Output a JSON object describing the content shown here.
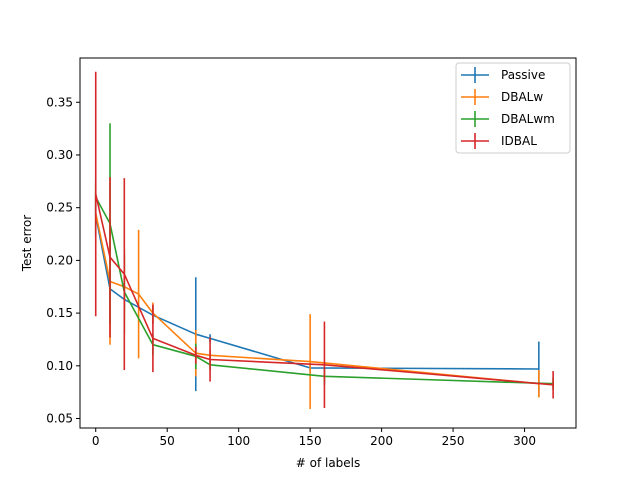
{
  "chart_data": {
    "type": "line",
    "title": "",
    "xlabel": "# of labels",
    "ylabel": "Test error",
    "xlim": [
      -11,
      336
    ],
    "ylim": [
      0.041,
      0.392
    ],
    "xticks": [
      0,
      50,
      100,
      150,
      200,
      250,
      300
    ],
    "yticks": [
      0.05,
      0.1,
      0.15,
      0.2,
      0.25,
      0.3,
      0.35
    ],
    "ytick_labels": [
      "0.05",
      "0.10",
      "0.15",
      "0.20",
      "0.25",
      "0.30",
      "0.35"
    ],
    "grid": false,
    "legend_position": "top-right",
    "series": [
      {
        "name": "Passive",
        "color": "#1f77b4",
        "points": [
          {
            "x": 0,
            "y": 0.243,
            "err": 0.02
          },
          {
            "x": 10,
            "y": 0.173,
            "err": 0.012
          },
          {
            "x": 20,
            "y": 0.163,
            "err": 0.01
          },
          {
            "x": 40,
            "y": 0.148,
            "err": 0.008
          },
          {
            "x": 70,
            "y": 0.13,
            "err": 0.054
          },
          {
            "x": 80,
            "y": 0.126,
            "err": 0.004
          },
          {
            "x": 150,
            "y": 0.098,
            "err": 0.004
          },
          {
            "x": 310,
            "y": 0.097,
            "err": 0.026
          }
        ]
      },
      {
        "name": "DBALw",
        "color": "#ff7f0e",
        "points": [
          {
            "x": 0,
            "y": 0.245,
            "err": 0.02
          },
          {
            "x": 10,
            "y": 0.18,
            "err": 0.06
          },
          {
            "x": 20,
            "y": 0.175,
            "err": 0.03
          },
          {
            "x": 30,
            "y": 0.168,
            "err": 0.061
          },
          {
            "x": 40,
            "y": 0.15,
            "err": 0.01
          },
          {
            "x": 70,
            "y": 0.112,
            "err": 0.022
          },
          {
            "x": 80,
            "y": 0.11,
            "err": 0.005
          },
          {
            "x": 150,
            "y": 0.104,
            "err": 0.045
          },
          {
            "x": 310,
            "y": 0.083,
            "err": 0.013
          },
          {
            "x": 320,
            "y": 0.083,
            "err": 0.004
          }
        ]
      },
      {
        "name": "DBALwm",
        "color": "#2ca02c",
        "points": [
          {
            "x": 0,
            "y": 0.26,
            "err": 0.016
          },
          {
            "x": 10,
            "y": 0.235,
            "err": 0.095
          },
          {
            "x": 20,
            "y": 0.17,
            "err": 0.04
          },
          {
            "x": 40,
            "y": 0.12,
            "err": 0.01
          },
          {
            "x": 70,
            "y": 0.109,
            "err": 0.012
          },
          {
            "x": 80,
            "y": 0.101,
            "err": 0.005
          },
          {
            "x": 160,
            "y": 0.09,
            "err": 0.008
          },
          {
            "x": 320,
            "y": 0.083,
            "err": 0.006
          }
        ]
      },
      {
        "name": "IDBAL",
        "color": "#d62728",
        "points": [
          {
            "x": 0,
            "y": 0.263,
            "err": 0.116
          },
          {
            "x": 10,
            "y": 0.203,
            "err": 0.076
          },
          {
            "x": 20,
            "y": 0.187,
            "err": 0.091
          },
          {
            "x": 40,
            "y": 0.126,
            "err": 0.032
          },
          {
            "x": 70,
            "y": 0.11,
            "err": 0.008
          },
          {
            "x": 80,
            "y": 0.106,
            "err": 0.021
          },
          {
            "x": 160,
            "y": 0.101,
            "err": 0.041
          },
          {
            "x": 320,
            "y": 0.082,
            "err": 0.013
          }
        ]
      }
    ]
  }
}
